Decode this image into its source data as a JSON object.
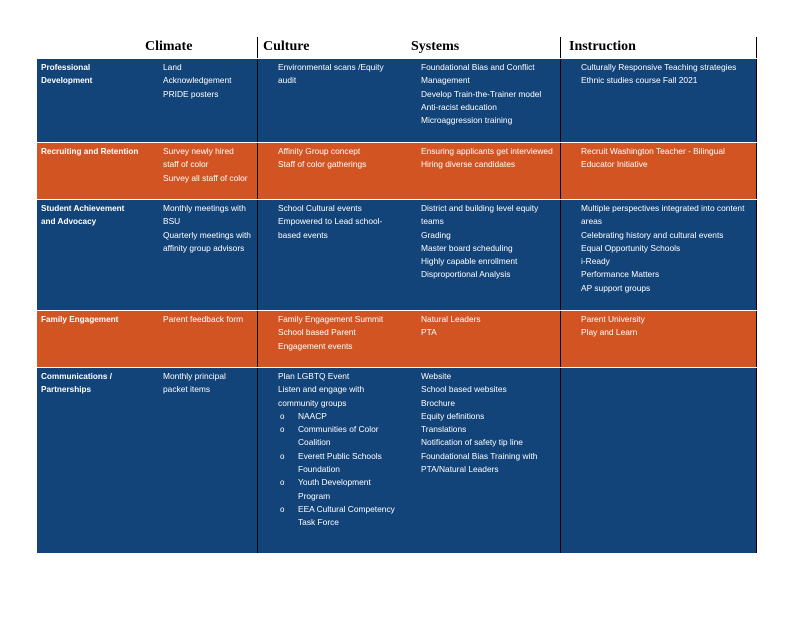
{
  "headers": {
    "col1": "Climate",
    "col2": "Culture",
    "col3": "Systems",
    "col4": "Instruction"
  },
  "bullet_glyph": "",
  "sub_bullet_glyph": "o",
  "rows": [
    {
      "label": "Professional Development",
      "color": "#124379",
      "climate": [
        "Land Acknowledgement",
        "PRIDE posters"
      ],
      "culture": [
        "Environmental scans /Equity audit"
      ],
      "systems": [
        "Foundational Bias and Conflict Management",
        "Develop Train-the-Trainer model",
        "Anti-racist education",
        "Microaggression training"
      ],
      "instruction": [
        "Culturally Responsive Teaching strategies",
        "Ethnic studies course Fall 2021"
      ]
    },
    {
      "label": "Recruiting and Retention",
      "color": "#d35423",
      "climate": [
        "Survey newly hired staff of color",
        "Survey all staff of color"
      ],
      "culture": [
        "Affinity Group concept",
        "Staff of color gatherings"
      ],
      "systems": [
        "Ensuring applicants get interviewed",
        "Hiring diverse candidates"
      ],
      "instruction": [
        "Recruit Washington Teacher - Bilingual Educator Initiative"
      ]
    },
    {
      "label": "Student Achievement and Advocacy",
      "color": "#124379",
      "climate": [
        "Monthly meetings with BSU",
        "Quarterly meetings with affinity group advisors"
      ],
      "culture": [
        "School Cultural events",
        "Empowered to Lead school-based events"
      ],
      "systems": [
        "District and building level equity teams",
        "Grading",
        "Master board scheduling",
        "Highly capable enrollment",
        "Disproportional Analysis"
      ],
      "instruction": [
        "Multiple perspectives integrated into content areas",
        "Celebrating history and cultural events",
        "Equal Opportunity Schools",
        "i-Ready",
        "Performance Matters",
        "AP support groups"
      ]
    },
    {
      "label": "Family Engagement",
      "color": "#d35423",
      "climate": [
        "Parent feedback form"
      ],
      "culture": [
        "Family Engagement Summit",
        "School based Parent Engagement events"
      ],
      "systems": [
        "Natural Leaders",
        "PTA"
      ],
      "instruction": [
        "Parent University",
        "Play and Learn"
      ]
    },
    {
      "label": "Communications / Partnerships",
      "color": "#124379",
      "climate": [
        "Monthly principal packet items"
      ],
      "culture": [
        "Plan LGBTQ Event",
        "Listen and engage with community groups"
      ],
      "culture_sub": [
        "NAACP",
        "Communities of Color Coalition",
        "Everett Public Schools Foundation",
        "Youth Development Program",
        "EEA Cultural Competency Task Force"
      ],
      "systems": [
        "Website",
        "School based websites",
        "Brochure",
        "Equity definitions",
        "Translations",
        "Notification of safety tip line",
        "Foundational Bias Training with PTA/Natural Leaders"
      ],
      "instruction": []
    }
  ]
}
